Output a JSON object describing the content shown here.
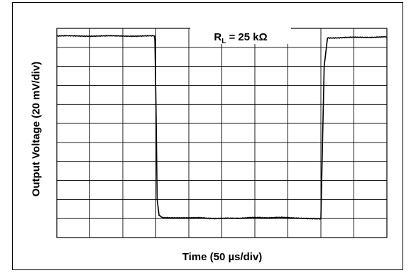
{
  "chart_data": {
    "type": "line",
    "xlabel": "Time (50 µs/div)",
    "ylabel": "Output Voltage (20 mV/div)",
    "annotation": {
      "prefix": "R",
      "subscript": "L",
      "text": " = 25 kΩ"
    },
    "grid": true,
    "x_divisions": 10,
    "y_divisions": 11,
    "xlim": [
      0,
      500
    ],
    "ylim": [
      0,
      220
    ],
    "series": [
      {
        "x": [
          0,
          148,
          148.6,
          150,
          151,
          152,
          155,
          160,
          200,
          250,
          300,
          350,
          390,
          397,
          400,
          405,
          410,
          500
        ],
        "y": [
          212,
          212,
          207,
          150,
          100,
          40,
          23,
          21,
          21,
          20,
          21,
          21,
          20,
          20,
          20,
          180,
          210,
          211
        ]
      }
    ]
  }
}
